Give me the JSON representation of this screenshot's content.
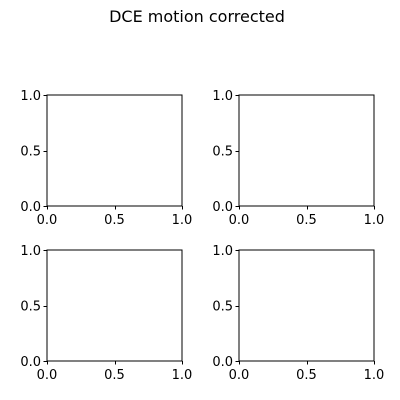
{
  "figure": {
    "suptitle": "DCE motion corrected",
    "background_color": "#ffffff",
    "axes_color": "#000000"
  },
  "chart_data": [
    {
      "type": "line",
      "title": "",
      "xlabel": "",
      "ylabel": "",
      "xlim": [
        0.0,
        1.0
      ],
      "ylim": [
        0.0,
        1.0
      ],
      "xticks": [
        0.0,
        0.5,
        1.0
      ],
      "yticks": [
        0.0,
        0.5,
        1.0
      ],
      "xtick_labels": [
        "0.0",
        "0.5",
        "1.0"
      ],
      "ytick_labels": [
        "0.0",
        "0.5",
        "1.0"
      ],
      "series": [],
      "grid": false
    },
    {
      "type": "line",
      "title": "",
      "xlabel": "",
      "ylabel": "",
      "xlim": [
        0.0,
        1.0
      ],
      "ylim": [
        0.0,
        1.0
      ],
      "xticks": [
        0.0,
        0.5,
        1.0
      ],
      "yticks": [
        0.0,
        0.5,
        1.0
      ],
      "xtick_labels": [
        "0.0",
        "0.5",
        "1.0"
      ],
      "ytick_labels": [
        "0.0",
        "0.5",
        "1.0"
      ],
      "series": [],
      "grid": false
    },
    {
      "type": "line",
      "title": "",
      "xlabel": "",
      "ylabel": "",
      "xlim": [
        0.0,
        1.0
      ],
      "ylim": [
        0.0,
        1.0
      ],
      "xticks": [
        0.0,
        0.5,
        1.0
      ],
      "yticks": [
        0.0,
        0.5,
        1.0
      ],
      "xtick_labels": [
        "0.0",
        "0.5",
        "1.0"
      ],
      "ytick_labels": [
        "0.0",
        "0.5",
        "1.0"
      ],
      "series": [],
      "grid": false
    },
    {
      "type": "line",
      "title": "",
      "xlabel": "",
      "ylabel": "",
      "xlim": [
        0.0,
        1.0
      ],
      "ylim": [
        0.0,
        1.0
      ],
      "xticks": [
        0.0,
        0.5,
        1.0
      ],
      "yticks": [
        0.0,
        0.5,
        1.0
      ],
      "xtick_labels": [
        "0.0",
        "0.5",
        "1.0"
      ],
      "ytick_labels": [
        "0.0",
        "0.5",
        "1.0"
      ],
      "series": [],
      "grid": false
    }
  ]
}
